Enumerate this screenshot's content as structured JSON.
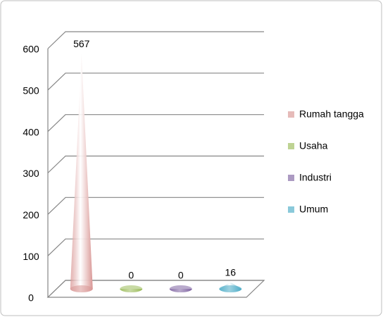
{
  "chart_data": {
    "type": "cone",
    "categories": [
      null
    ],
    "series": [
      {
        "name": "Rumah tangga",
        "color": "#d99694",
        "values": [
          567
        ]
      },
      {
        "name": "Usaha",
        "color": "#9bbb59",
        "values": [
          0
        ]
      },
      {
        "name": "Industri",
        "color": "#8064a2",
        "values": [
          0
        ]
      },
      {
        "name": "Umum",
        "color": "#4bacc6",
        "values": [
          16
        ]
      }
    ],
    "ylim": [
      0,
      600
    ],
    "yticks": [
      0,
      100,
      200,
      300,
      400,
      500,
      600
    ],
    "grid": true,
    "legend": "right"
  }
}
